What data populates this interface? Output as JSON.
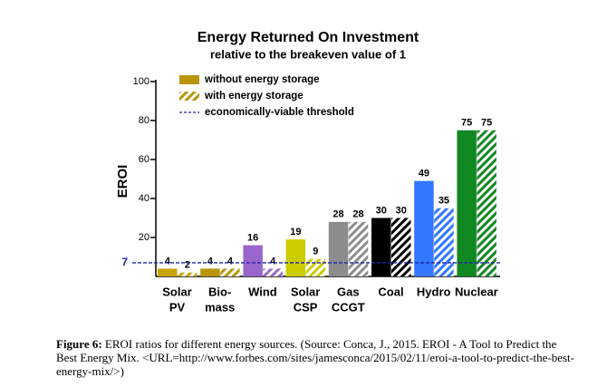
{
  "chart_data": {
    "type": "bar",
    "title": "Energy Returned On Investment",
    "subtitle": "relative to the breakeven value of 1",
    "y_label": "EROI",
    "categories": [
      [
        "Solar",
        "PV"
      ],
      [
        "Bio-",
        "mass"
      ],
      [
        "Wind"
      ],
      [
        "Solar",
        "CSP"
      ],
      [
        "Gas",
        "CCGT"
      ],
      [
        "Coal"
      ],
      [
        "Hydro"
      ],
      [
        "Nuclear"
      ]
    ],
    "series": [
      {
        "name": "without energy storage",
        "color": "#b8960a",
        "pattern": "solid",
        "colors": [
          "#c8a400",
          "#b8960a",
          "#9966cc",
          "#cccc00",
          "#8c8c8c",
          "#000000",
          "#3377ff",
          "#118822"
        ],
        "values": [
          4,
          4,
          16,
          19,
          28,
          30,
          49,
          75
        ]
      },
      {
        "name": "with energy storage",
        "color": "#b8960a",
        "pattern": "hatch",
        "colors": [
          "#c8a400",
          "#b8960a",
          "#9966cc",
          "#cccc00",
          "#8c8c8c",
          "#000000",
          "#3377ff",
          "#118822"
        ],
        "values": [
          2,
          4,
          4,
          9,
          28,
          30,
          35,
          75
        ]
      }
    ],
    "threshold": {
      "value": 7,
      "label": "economically-viable threshold",
      "color": "#2222aa"
    },
    "ylim": [
      0,
      100
    ],
    "yticks": [
      20,
      40,
      60,
      80,
      100
    ],
    "legend": "top-left"
  },
  "caption": {
    "label": "Figure 6:",
    "text": "EROI ratios for different energy sources. (Source: Conca, J., 2015. EROI - A Tool to Predict the Best Energy Mix. <URL=http://www.forbes.com/sites/jamesconca/2015/02/11/eroi-a-tool-to-predict-the-best-energy-mix/>)"
  }
}
